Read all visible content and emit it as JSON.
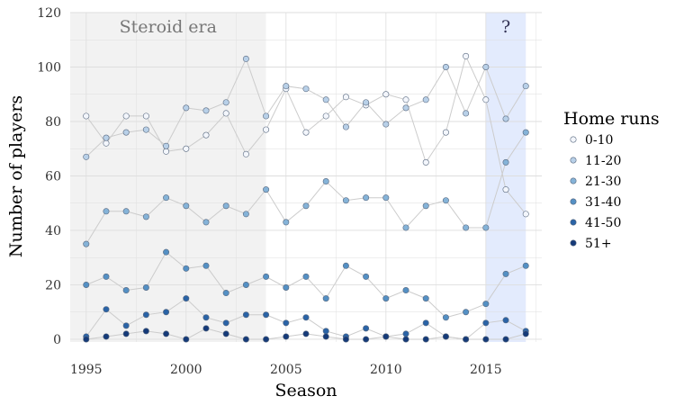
{
  "chart_data": {
    "type": "line",
    "xlabel": "Season",
    "ylabel": "Number of players",
    "xlim": [
      1994.2,
      2017.8
    ],
    "ylim": [
      -1,
      120
    ],
    "x_ticks": [
      1995,
      2000,
      2005,
      2010,
      2015
    ],
    "y_ticks": [
      0,
      20,
      40,
      60,
      80,
      100,
      120
    ],
    "grid": true,
    "legend": {
      "title": "Home runs",
      "position": "right"
    },
    "regions": [
      {
        "label": "Steroid era",
        "x": [
          1994.2,
          2004
        ],
        "color": "#f2f2f2",
        "text_color": "#777777"
      },
      {
        "label": "?",
        "x": [
          2015,
          2017
        ],
        "color": "#e3ebfd",
        "text_color": "#333355"
      }
    ],
    "x": [
      1995,
      1996,
      1997,
      1998,
      1999,
      2000,
      2001,
      2002,
      2003,
      2004,
      2005,
      2006,
      2007,
      2008,
      2009,
      2010,
      2011,
      2012,
      2013,
      2014,
      2015,
      2016,
      2017
    ],
    "series": [
      {
        "name": "0-10",
        "color": "#f3f6fc",
        "values": [
          82,
          72,
          82,
          82,
          69,
          70,
          75,
          83,
          68,
          77,
          92,
          76,
          82,
          89,
          86,
          90,
          88,
          65,
          76,
          104,
          88,
          55,
          46
        ]
      },
      {
        "name": "11-20",
        "color": "#b8d0e8",
        "values": [
          67,
          74,
          76,
          77,
          71,
          85,
          84,
          87,
          103,
          82,
          93,
          92,
          88,
          78,
          87,
          79,
          85,
          88,
          100,
          83,
          100,
          81,
          93
        ]
      },
      {
        "name": "21-30",
        "color": "#85b3d8",
        "values": [
          35,
          47,
          47,
          45,
          52,
          49,
          43,
          49,
          46,
          55,
          43,
          49,
          58,
          51,
          52,
          52,
          41,
          49,
          51,
          41,
          41,
          65,
          76
        ]
      },
      {
        "name": "31-40",
        "color": "#5490c4",
        "values": [
          20,
          23,
          18,
          19,
          32,
          26,
          27,
          17,
          20,
          23,
          19,
          23,
          15,
          27,
          23,
          15,
          18,
          15,
          8,
          10,
          13,
          24,
          27
        ]
      },
      {
        "name": "41-50",
        "color": "#2a63a6",
        "values": [
          1,
          11,
          5,
          9,
          10,
          15,
          8,
          6,
          9,
          9,
          6,
          8,
          3,
          1,
          4,
          1,
          2,
          6,
          1,
          0,
          6,
          7,
          3
        ]
      },
      {
        "name": "51+",
        "color": "#153a78",
        "values": [
          0,
          1,
          2,
          3,
          2,
          0,
          4,
          2,
          0,
          0,
          1,
          2,
          1,
          0,
          0,
          1,
          0,
          0,
          1,
          0,
          0,
          0,
          2
        ]
      }
    ]
  }
}
